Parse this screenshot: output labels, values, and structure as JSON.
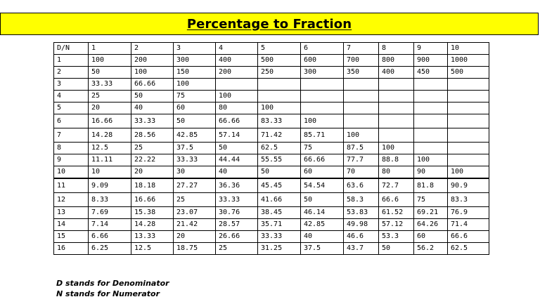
{
  "title": "Percentage to Fraction",
  "table": {
    "header": [
      "D/N",
      "1",
      "2",
      "3",
      "4",
      "5",
      "6",
      "7",
      "8",
      "9",
      "10"
    ],
    "rows": [
      [
        "1",
        "100",
        "200",
        "300",
        "400",
        "500",
        "600",
        "700",
        "800",
        "900",
        "1000"
      ],
      [
        "2",
        "50",
        "100",
        "150",
        "200",
        "250",
        "300",
        "350",
        "400",
        "450",
        "500"
      ],
      [
        "3",
        "33.33",
        "66.66",
        "100",
        "",
        "",
        "",
        "",
        "",
        "",
        ""
      ],
      [
        "4",
        "25",
        "50",
        "75",
        "100",
        "",
        "",
        "",
        "",
        "",
        ""
      ],
      [
        "5",
        "20",
        "40",
        "60",
        "80",
        "100",
        "",
        "",
        "",
        "",
        ""
      ],
      [
        "6",
        "16.66",
        "33.33",
        "50",
        "66.66",
        "83.33",
        "100",
        "",
        "",
        "",
        ""
      ],
      [
        "7",
        "14.28",
        "28.56",
        "42.85",
        "57.14",
        "71.42",
        "85.71",
        "100",
        "",
        "",
        ""
      ],
      [
        "8",
        "12.5",
        "25",
        "37.5",
        "50",
        "62.5",
        "75",
        "87.5",
        "100",
        "",
        ""
      ],
      [
        "9",
        "11.11",
        "22.22",
        "33.33",
        "44.44",
        "55.55",
        "66.66",
        "77.7",
        "88.8",
        "100",
        ""
      ],
      [
        "10",
        "10",
        "20",
        "30",
        "40",
        "50",
        "60",
        "70",
        "80",
        "90",
        "100"
      ],
      [
        "11",
        "9.09",
        "18.18",
        "27.27",
        "36.36",
        "45.45",
        "54.54",
        "63.6",
        "72.7",
        "81.8",
        "90.9"
      ],
      [
        "12",
        "8.33",
        "16.66",
        "25",
        "33.33",
        "41.66",
        "50",
        "58.3",
        "66.6",
        "75",
        "83.3"
      ],
      [
        "13",
        "7.69",
        "15.38",
        "23.07",
        "30.76",
        "38.45",
        "46.14",
        "53.83",
        "61.52",
        "69.21",
        "76.9"
      ],
      [
        "14",
        "7.14",
        "14.28",
        "21.42",
        "28.57",
        "35.71",
        "42.85",
        "49.98",
        "57.12",
        "64.26",
        "71.4"
      ],
      [
        "15",
        "6.66",
        "13.33",
        "20",
        "26.66",
        "33.33",
        "40",
        "46.6",
        "53.3",
        "60",
        "66.6"
      ],
      [
        "16",
        "6.25",
        "12.5",
        "18.75",
        "25",
        "31.25",
        "37.5",
        "43.7",
        "50",
        "56.2",
        "62.5"
      ]
    ]
  },
  "notes": [
    "D stands for Denominator",
    "N stands for Numerator"
  ],
  "colors": {
    "banner": "#ffff00",
    "text": "#000000",
    "border": "#000000"
  }
}
